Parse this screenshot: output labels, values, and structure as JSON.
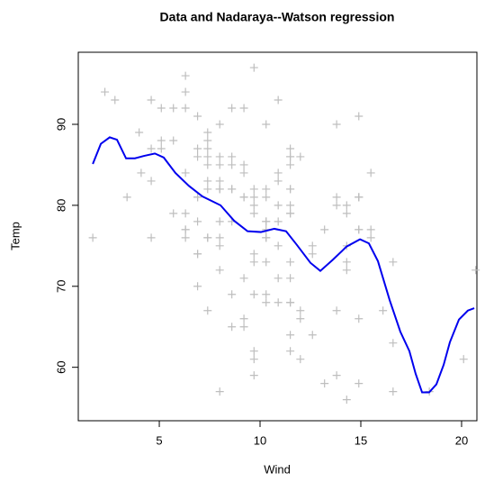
{
  "chart_data": {
    "type": "scatter",
    "title": "Data and Nadaraya--Watson regression",
    "x_label": "Wind",
    "y_label": "Temp",
    "xlim": [
      0.98,
      20.76
    ],
    "ylim": [
      53.4,
      98.9
    ],
    "xticks": [
      5,
      10,
      15,
      20
    ],
    "yticks": [
      60,
      70,
      80,
      90
    ],
    "series": [
      {
        "type": "scatter",
        "color": "#bebebe",
        "x": [
          7.4,
          8.0,
          12.6,
          11.5,
          14.3,
          14.9,
          8.6,
          13.8,
          20.1,
          8.6,
          6.9,
          9.7,
          9.2,
          10.9,
          13.2,
          11.5,
          12.0,
          18.4,
          11.5,
          9.7,
          9.7,
          16.6,
          9.7,
          12.0,
          16.6,
          14.9,
          8.0,
          12.0,
          14.9,
          5.7,
          7.4,
          8.6,
          9.7,
          16.1,
          9.2,
          8.6,
          14.3,
          9.7,
          6.9,
          13.8,
          11.5,
          10.9,
          9.2,
          8.0,
          13.8,
          11.5,
          14.9,
          20.7,
          9.2,
          11.5,
          10.3,
          6.3,
          1.7,
          4.6,
          6.3,
          8.0,
          8.0,
          10.3,
          11.5,
          14.9,
          8.0,
          4.1,
          9.2,
          9.2,
          10.9,
          4.6,
          10.9,
          5.1,
          6.3,
          5.7,
          7.4,
          8.6,
          14.3,
          14.9,
          14.9,
          14.3,
          6.9,
          10.3,
          6.3,
          5.1,
          11.5,
          6.9,
          9.7,
          11.5,
          8.6,
          8.0,
          8.6,
          12.0,
          7.4,
          7.4,
          7.4,
          9.2,
          6.9,
          13.8,
          7.4,
          6.9,
          7.4,
          4.6,
          4.0,
          10.3,
          8.0,
          8.6,
          11.5,
          11.5,
          11.5,
          9.7,
          11.5,
          10.3,
          6.3,
          7.4,
          10.9,
          10.3,
          15.5,
          14.3,
          12.6,
          9.7,
          3.4,
          8.0,
          5.7,
          9.7,
          2.3,
          6.3,
          6.3,
          6.9,
          5.1,
          2.8,
          4.6,
          7.4,
          15.5,
          10.9,
          10.3,
          10.9,
          9.7,
          14.9,
          15.5,
          6.3,
          10.9,
          11.5,
          6.9,
          13.8,
          10.3,
          10.3,
          8.0,
          12.6,
          9.2,
          10.3,
          10.3,
          16.6,
          6.9,
          13.2,
          14.3,
          8.0,
          11.5
        ],
        "values": [
          67,
          72,
          74,
          62,
          56,
          66,
          65,
          59,
          61,
          69,
          74,
          69,
          66,
          68,
          58,
          64,
          66,
          57,
          68,
          62,
          59,
          73,
          61,
          61,
          57,
          58,
          57,
          67,
          81,
          79,
          76,
          78,
          74,
          67,
          84,
          85,
          79,
          82,
          87,
          90,
          87,
          93,
          92,
          82,
          80,
          79,
          77,
          72,
          65,
          73,
          76,
          77,
          76,
          76,
          76,
          75,
          78,
          73,
          80,
          77,
          83,
          84,
          85,
          81,
          84,
          83,
          83,
          88,
          92,
          92,
          89,
          82,
          73,
          81,
          91,
          80,
          81,
          82,
          84,
          87,
          85,
          74,
          81,
          82,
          86,
          85,
          82,
          86,
          88,
          86,
          83,
          81,
          81,
          81,
          82,
          86,
          85,
          87,
          89,
          90,
          90,
          92,
          86,
          86,
          82,
          80,
          79,
          77,
          79,
          76,
          78,
          78,
          77,
          72,
          75,
          79,
          81,
          86,
          88,
          97,
          94,
          96,
          94,
          91,
          92,
          93,
          93,
          87,
          84,
          80,
          78,
          75,
          73,
          81,
          76,
          77,
          71,
          71,
          78,
          67,
          76,
          68,
          82,
          64,
          71,
          81,
          69,
          63,
          70,
          77,
          75,
          76,
          68
        ]
      },
      {
        "type": "line",
        "color": "#0000ee",
        "x": [
          1.7,
          2.1,
          2.54,
          2.9,
          3.35,
          3.79,
          4.24,
          4.78,
          5.22,
          5.8,
          6.47,
          7.14,
          8.04,
          8.71,
          9.38,
          10.04,
          10.71,
          11.29,
          11.83,
          12.5,
          12.99,
          13.62,
          14.29,
          14.96,
          15.4,
          15.85,
          16.43,
          16.96,
          17.41,
          17.72,
          18.04,
          18.39,
          18.75,
          19.11,
          19.42,
          19.87,
          20.31,
          20.63
        ],
        "values": [
          85.1,
          87.6,
          88.4,
          88.1,
          85.8,
          85.8,
          86.1,
          86.4,
          85.9,
          84.0,
          82.4,
          81.1,
          80.0,
          78.1,
          76.8,
          76.7,
          77.1,
          76.8,
          75.1,
          72.9,
          71.9,
          73.3,
          74.9,
          75.8,
          75.3,
          73.1,
          68.3,
          64.4,
          62.0,
          59.2,
          56.9,
          56.9,
          57.9,
          60.3,
          63.1,
          65.9,
          67.0,
          67.3
        ]
      }
    ]
  }
}
